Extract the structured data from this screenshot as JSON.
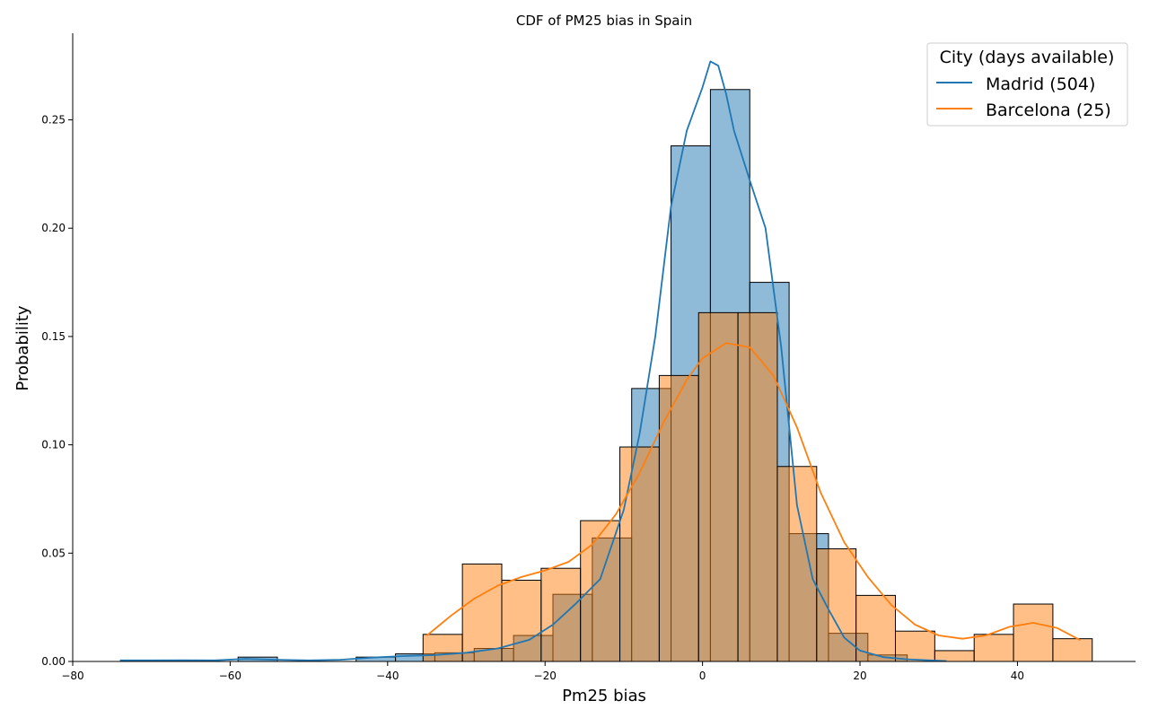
{
  "chart_data": {
    "type": "histogram+kde",
    "title": "CDF of PM25 bias in Spain",
    "xlabel": "Pm25 bias",
    "ylabel": "Probability",
    "xlim": [
      -80,
      55
    ],
    "ylim": [
      0,
      0.29
    ],
    "xticks": [
      -80,
      -60,
      -40,
      -20,
      0,
      20,
      40
    ],
    "xtick_labels": [
      "−80",
      "−60",
      "−40",
      "−20",
      "0",
      "20",
      "40"
    ],
    "yticks": [
      0.0,
      0.05,
      0.1,
      0.15,
      0.2,
      0.25
    ],
    "ytick_labels": [
      "0.00",
      "0.05",
      "0.10",
      "0.15",
      "0.20",
      "0.25"
    ],
    "legend": {
      "title": "City (days available)",
      "placement": "top-right",
      "entries": [
        "Madrid (504)",
        "Barcelona (25)"
      ]
    },
    "series": [
      {
        "name": "Madrid (504)",
        "color": "#1f77b4",
        "bins": [
          {
            "x0": -74.0,
            "x1": -69.0,
            "p": 0.0
          },
          {
            "x0": -69.0,
            "x1": -64.0,
            "p": 0.0
          },
          {
            "x0": -64.0,
            "x1": -59.0,
            "p": 0.0
          },
          {
            "x0": -59.0,
            "x1": -54.0,
            "p": 0.002
          },
          {
            "x0": -54.0,
            "x1": -49.0,
            "p": 0.0
          },
          {
            "x0": -49.0,
            "x1": -44.0,
            "p": 0.0
          },
          {
            "x0": -44.0,
            "x1": -39.0,
            "p": 0.002
          },
          {
            "x0": -39.0,
            "x1": -34.0,
            "p": 0.0035
          },
          {
            "x0": -34.0,
            "x1": -29.0,
            "p": 0.004
          },
          {
            "x0": -29.0,
            "x1": -24.0,
            "p": 0.006
          },
          {
            "x0": -24.0,
            "x1": -19.0,
            "p": 0.012
          },
          {
            "x0": -19.0,
            "x1": -14.0,
            "p": 0.031
          },
          {
            "x0": -14.0,
            "x1": -9.0,
            "p": 0.057
          },
          {
            "x0": -9.0,
            "x1": -4.0,
            "p": 0.126
          },
          {
            "x0": -4.0,
            "x1": 1.0,
            "p": 0.238
          },
          {
            "x0": 1.0,
            "x1": 6.0,
            "p": 0.264
          },
          {
            "x0": 6.0,
            "x1": 11.0,
            "p": 0.175
          },
          {
            "x0": 11.0,
            "x1": 16.0,
            "p": 0.059
          },
          {
            "x0": 16.0,
            "x1": 21.0,
            "p": 0.013
          },
          {
            "x0": 21.0,
            "x1": 26.0,
            "p": 0.003
          }
        ],
        "kde": {
          "x": [
            -74,
            -70,
            -66,
            -62,
            -58,
            -54,
            -50,
            -46,
            -42,
            -38,
            -34,
            -30,
            -26,
            -22,
            -19,
            -16,
            -13,
            -10,
            -8,
            -6,
            -4,
            -2,
            0,
            1,
            2,
            3,
            4,
            6,
            8,
            10,
            12,
            14,
            16,
            18,
            20,
            23,
            26,
            29,
            31
          ],
          "y": [
            0.0005,
            0.0005,
            0.0006,
            0.0005,
            0.0012,
            0.0008,
            0.0005,
            0.0008,
            0.0018,
            0.0025,
            0.003,
            0.004,
            0.006,
            0.01,
            0.017,
            0.027,
            0.038,
            0.07,
            0.105,
            0.15,
            0.21,
            0.245,
            0.265,
            0.277,
            0.275,
            0.262,
            0.245,
            0.222,
            0.2,
            0.145,
            0.072,
            0.038,
            0.024,
            0.011,
            0.005,
            0.002,
            0.001,
            0.0005,
            0.0002
          ]
        }
      },
      {
        "name": "Barcelona (25)",
        "color": "#ff7f0e",
        "bins": [
          {
            "x0": -35.5,
            "x1": -30.5,
            "p": 0.0125
          },
          {
            "x0": -30.5,
            "x1": -25.5,
            "p": 0.045
          },
          {
            "x0": -25.5,
            "x1": -20.5,
            "p": 0.0375
          },
          {
            "x0": -20.5,
            "x1": -15.5,
            "p": 0.043
          },
          {
            "x0": -15.5,
            "x1": -10.5,
            "p": 0.065
          },
          {
            "x0": -10.5,
            "x1": -5.5,
            "p": 0.099
          },
          {
            "x0": -5.5,
            "x1": -0.5,
            "p": 0.132
          },
          {
            "x0": -0.5,
            "x1": 4.5,
            "p": 0.161
          },
          {
            "x0": 4.5,
            "x1": 9.5,
            "p": 0.161
          },
          {
            "x0": 9.5,
            "x1": 14.5,
            "p": 0.09
          },
          {
            "x0": 14.5,
            "x1": 19.5,
            "p": 0.052
          },
          {
            "x0": 19.5,
            "x1": 24.5,
            "p": 0.0305
          },
          {
            "x0": 24.5,
            "x1": 29.5,
            "p": 0.014
          },
          {
            "x0": 29.5,
            "x1": 34.5,
            "p": 0.005
          },
          {
            "x0": 34.5,
            "x1": 39.5,
            "p": 0.0125
          },
          {
            "x0": 39.5,
            "x1": 44.5,
            "p": 0.0265
          },
          {
            "x0": 44.5,
            "x1": 49.5,
            "p": 0.0105
          }
        ],
        "kde": {
          "x": [
            -35,
            -32,
            -29,
            -26,
            -23,
            -20,
            -17,
            -14,
            -11,
            -8,
            -5,
            -2,
            0,
            3,
            6,
            9,
            12,
            15,
            18,
            21,
            24,
            27,
            30,
            33,
            36,
            39,
            42,
            45,
            48
          ],
          "y": [
            0.012,
            0.021,
            0.029,
            0.035,
            0.039,
            0.042,
            0.046,
            0.054,
            0.068,
            0.087,
            0.11,
            0.13,
            0.14,
            0.147,
            0.145,
            0.132,
            0.108,
            0.078,
            0.055,
            0.039,
            0.026,
            0.017,
            0.012,
            0.0105,
            0.012,
            0.016,
            0.0178,
            0.0155,
            0.0098
          ]
        }
      }
    ]
  }
}
